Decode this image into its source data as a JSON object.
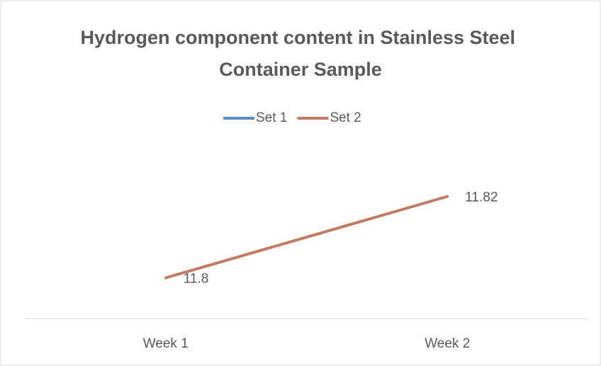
{
  "chart_data": {
    "type": "line",
    "title": "Hydrogen component content in Stainless Steel Container Sample",
    "categories": [
      "Week 1",
      "Week 2"
    ],
    "series": [
      {
        "name": "Set 1",
        "color": "#5b8bd0",
        "values": [
          null,
          null
        ]
      },
      {
        "name": "Set 2",
        "color": "#c27a62",
        "values": [
          11.8,
          11.82
        ]
      }
    ],
    "ylim": [
      11.79,
      11.83
    ],
    "legend": "top"
  }
}
